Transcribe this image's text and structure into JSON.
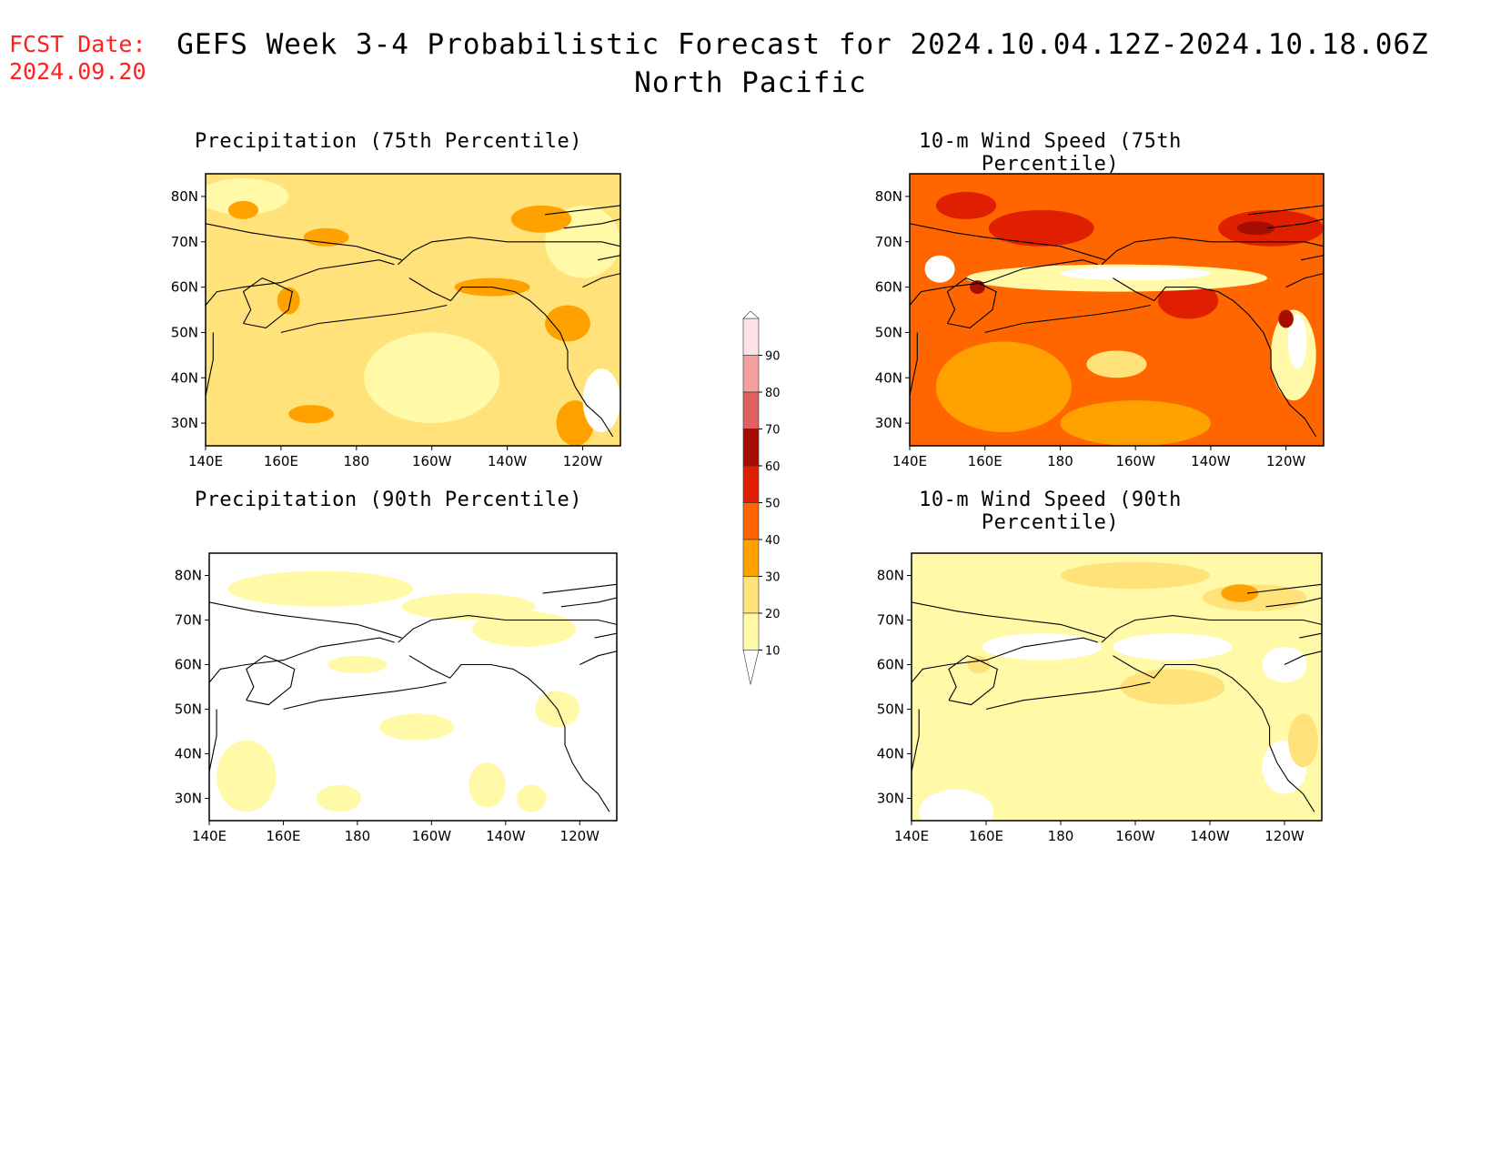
{
  "header": {
    "fcst_label": "FCST Date:",
    "fcst_date": "2024.09.20",
    "title": "GEFS Week 3-4 Probabilistic Forecast for 2024.10.04.12Z-2024.10.18.06Z",
    "subtitle": "North Pacific"
  },
  "colors": {
    "levels": [
      "#ffffff",
      "#fff9a8",
      "#ffe27a",
      "#ffa200",
      "#ff6600",
      "#e01e00",
      "#a50e00",
      "#e06060",
      "#f4a0a0",
      "#fde2e6"
    ],
    "coast": "#000000"
  },
  "colorbar": {
    "labels": [
      "10",
      "20",
      "30",
      "40",
      "50",
      "60",
      "70",
      "80",
      "90"
    ]
  },
  "panels": [
    {
      "title": "Precipitation (75th Percentile)",
      "lat_labels": [
        "80N",
        "70N",
        "60N",
        "50N",
        "40N",
        "30N"
      ],
      "lon_labels": [
        "140E",
        "160E",
        "180",
        "160W",
        "140W",
        "120W"
      ]
    },
    {
      "title": "10-m Wind Speed (75th Percentile)",
      "lat_labels": [
        "80N",
        "70N",
        "60N",
        "50N",
        "40N",
        "30N"
      ],
      "lon_labels": [
        "140E",
        "160E",
        "180",
        "160W",
        "140W",
        "120W"
      ]
    },
    {
      "title": "Precipitation (90th Percentile)",
      "lat_labels": [
        "80N",
        "70N",
        "60N",
        "50N",
        "40N",
        "30N"
      ],
      "lon_labels": [
        "140E",
        "160E",
        "180",
        "160W",
        "140W",
        "120W"
      ]
    },
    {
      "title": "10-m Wind Speed (90th Percentile)",
      "lat_labels": [
        "80N",
        "70N",
        "60N",
        "50N",
        "40N",
        "30N"
      ],
      "lon_labels": [
        "140E",
        "160E",
        "180",
        "160W",
        "140W",
        "120W"
      ]
    }
  ],
  "maps": {
    "lon_range": [
      140,
      250
    ],
    "lat_range": [
      25,
      85
    ],
    "grid_lats": [
      80,
      70,
      60,
      50,
      40,
      30
    ],
    "grid_lons": [
      140,
      160,
      180,
      200,
      220,
      240
    ],
    "base_levels": [
      2,
      4,
      0,
      1
    ],
    "blobs": [
      [
        [
          1,
          150,
          80,
          12,
          4
        ],
        [
          1,
          240,
          70,
          10,
          8
        ],
        [
          1,
          200,
          40,
          18,
          10
        ],
        [
          3,
          229,
          75,
          8,
          3
        ],
        [
          3,
          150,
          77,
          4,
          2
        ],
        [
          3,
          172,
          71,
          6,
          2
        ],
        [
          3,
          162,
          57,
          3,
          3
        ],
        [
          3,
          236,
          52,
          6,
          4
        ],
        [
          3,
          238,
          30,
          5,
          5
        ],
        [
          3,
          168,
          32,
          6,
          2
        ],
        [
          3,
          216,
          60,
          10,
          2
        ],
        [
          0,
          245,
          35,
          5,
          7
        ]
      ],
      [
        [
          5,
          175,
          73,
          14,
          4
        ],
        [
          5,
          236,
          73,
          14,
          4
        ],
        [
          5,
          155,
          78,
          8,
          3
        ],
        [
          5,
          214,
          57,
          8,
          4
        ],
        [
          3,
          165,
          38,
          18,
          10
        ],
        [
          3,
          200,
          30,
          20,
          5
        ],
        [
          2,
          195,
          43,
          8,
          3
        ],
        [
          1,
          195,
          62,
          40,
          3
        ],
        [
          0,
          200,
          63,
          20,
          1.5
        ],
        [
          1,
          242,
          45,
          6,
          10
        ],
        [
          0,
          243,
          48,
          2.5,
          6
        ],
        [
          0,
          148,
          64,
          4,
          3
        ],
        [
          6,
          158,
          60,
          2,
          1.5
        ],
        [
          6,
          240,
          53,
          2,
          2
        ],
        [
          6,
          232,
          73,
          5,
          1.5
        ]
      ],
      [
        [
          1,
          170,
          77,
          25,
          4
        ],
        [
          1,
          225,
          68,
          14,
          4
        ],
        [
          1,
          180,
          60,
          8,
          2
        ],
        [
          1,
          196,
          46,
          10,
          3
        ],
        [
          1,
          150,
          35,
          8,
          8
        ],
        [
          1,
          234,
          50,
          6,
          4
        ],
        [
          1,
          215,
          33,
          5,
          5
        ],
        [
          1,
          227,
          30,
          4,
          3
        ],
        [
          1,
          175,
          30,
          6,
          3
        ],
        [
          1,
          210,
          73,
          18,
          3
        ]
      ],
      [
        [
          0,
          152,
          27,
          10,
          5
        ],
        [
          0,
          240,
          37,
          6,
          6
        ],
        [
          0,
          175,
          64,
          16,
          3
        ],
        [
          0,
          210,
          64,
          16,
          3
        ],
        [
          0,
          240,
          60,
          6,
          4
        ],
        [
          2,
          232,
          75,
          14,
          3
        ],
        [
          2,
          210,
          55,
          14,
          4
        ],
        [
          2,
          245,
          43,
          4,
          6
        ],
        [
          3,
          228,
          76,
          5,
          2
        ],
        [
          2,
          158,
          60,
          3,
          2
        ],
        [
          2,
          200,
          80,
          20,
          3
        ]
      ]
    ]
  }
}
